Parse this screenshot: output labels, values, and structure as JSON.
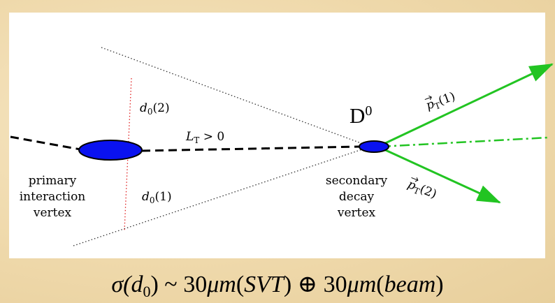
{
  "d0_upper": [
    "d",
    "0",
    "(2)"
  ],
  "d0_lower": [
    "d",
    "0",
    "(1)"
  ],
  "decay_length": [
    "L",
    "T",
    " > 0"
  ],
  "d_meson": [
    "D",
    "0"
  ],
  "track_1": [
    "p",
    "T",
    "(1)"
  ],
  "track_2": [
    "p",
    "T",
    "(2)"
  ],
  "primary_vertex": [
    "primary",
    "interaction",
    "vertex"
  ],
  "secondary_vertex": [
    "secondary",
    "decay",
    "vertex"
  ],
  "caption": [
    "σ(",
    "d",
    "0",
    ") ~ 30",
    "μm",
    "(",
    "SVT",
    ") ⊕ 30",
    "μm",
    "(",
    "beam",
    ")"
  ]
}
